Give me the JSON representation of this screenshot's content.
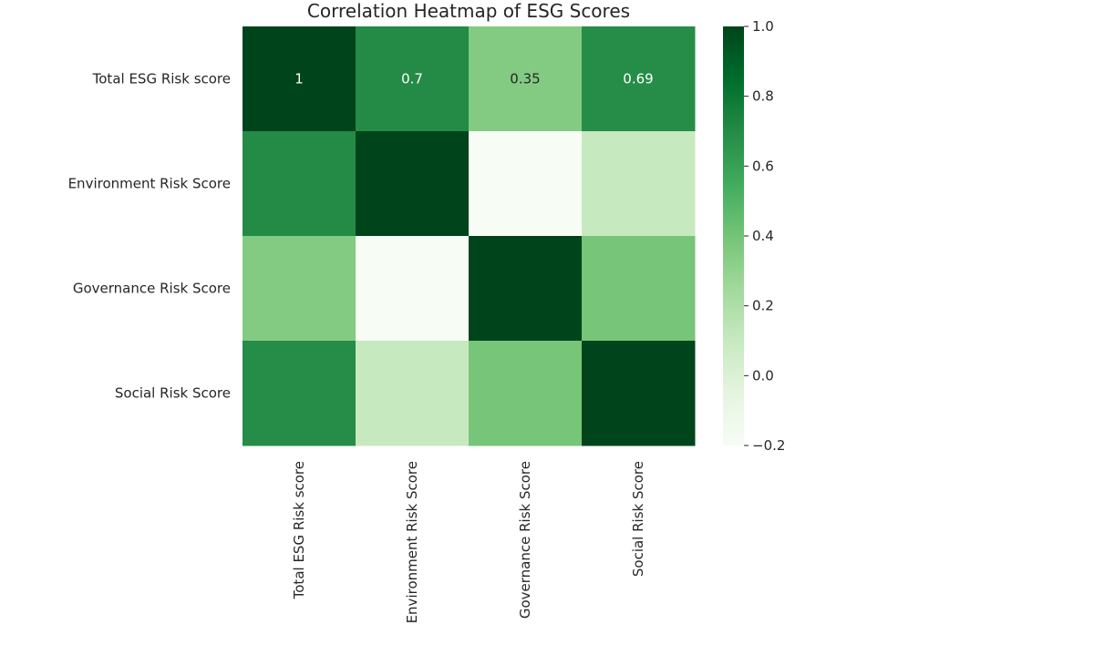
{
  "chart_data": {
    "type": "heatmap",
    "title": "Correlation Heatmap of ESG Scores",
    "rows": [
      "Total ESG Risk score",
      "Environment Risk Score",
      "Governance Risk Score",
      "Social Risk Score"
    ],
    "columns": [
      "Total ESG Risk score",
      "Environment Risk Score",
      "Governance Risk Score",
      "Social Risk Score"
    ],
    "values": [
      [
        1.0,
        0.7,
        0.35,
        0.69
      ],
      [
        0.7,
        1.0,
        -0.2,
        0.1
      ],
      [
        0.35,
        -0.2,
        1.0,
        0.39
      ],
      [
        0.69,
        0.1,
        0.39,
        1.0
      ]
    ],
    "annotations": [
      [
        "1",
        "0.7",
        "0.35",
        "0.69"
      ],
      [
        null,
        null,
        null,
        null
      ],
      [
        null,
        null,
        null,
        null
      ],
      [
        null,
        null,
        null,
        null
      ]
    ],
    "colormap": "Greens",
    "colorbar": {
      "vmin": -0.2,
      "vmax": 1.0,
      "ticks": [
        1.0,
        0.8,
        0.6,
        0.4,
        0.2,
        0.0,
        -0.2
      ],
      "tick_labels": [
        "1.0",
        "0.8",
        "0.6",
        "0.4",
        "0.2",
        "0.0",
        "−0.2"
      ]
    }
  }
}
